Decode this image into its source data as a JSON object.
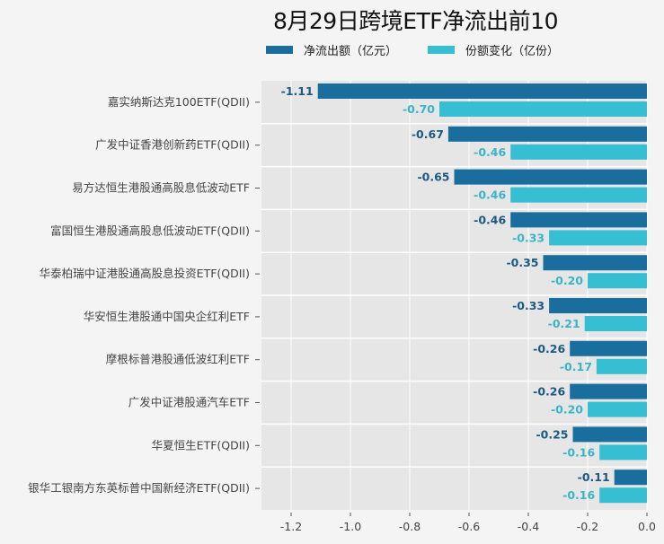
{
  "chart_data": {
    "type": "bar",
    "orientation": "horizontal",
    "title": "8月29日跨境ETF净流出前10",
    "xlabel": "",
    "ylabel": "",
    "xlim": [
      -1.3,
      0.0
    ],
    "xticks": [
      "-1.2",
      "-1.0",
      "-0.8",
      "-0.6",
      "-0.4",
      "-0.2",
      "0.0"
    ],
    "xtick_values": [
      -1.2,
      -1.0,
      -0.8,
      -0.6,
      -0.4,
      -0.2,
      0.0
    ],
    "grid": true,
    "legend_position": "top-left",
    "categories": [
      "嘉实纳斯达克100ETF(QDII)",
      "广发中证香港创新药ETF(QDII)",
      "易方达恒生港股通高股息低波动ETF",
      "富国恒生港股通高股息低波动ETF(QDII)",
      "华泰柏瑞中证港股通高股息投资ETF(QDII)",
      "华安恒生港股通中国央企红利ETF",
      "摩根标普港股通低波红利ETF",
      "广发中证港股通汽车ETF",
      "华夏恒生ETF(QDII)",
      "银华工银南方东英标普中国新经济ETF(QDII)"
    ],
    "series": [
      {
        "name": "净流出额（亿元）",
        "color": "#1a6e9e",
        "labels": [
          "-1.11",
          "-0.67",
          "-0.65",
          "-0.46",
          "-0.35",
          "-0.33",
          "-0.26",
          "-0.26",
          "-0.25",
          "-0.11"
        ],
        "values": [
          -1.11,
          -0.67,
          -0.65,
          -0.46,
          -0.35,
          -0.33,
          -0.26,
          -0.26,
          -0.25,
          -0.11
        ]
      },
      {
        "name": "份额变化（亿份）",
        "color": "#36bfd2",
        "labels": [
          "-0.70",
          "-0.46",
          "-0.46",
          "-0.33",
          "-0.20",
          "-0.21",
          "-0.17",
          "-0.20",
          "-0.16",
          "-0.16"
        ],
        "values": [
          -0.7,
          -0.46,
          -0.46,
          -0.33,
          -0.2,
          -0.21,
          -0.17,
          -0.2,
          -0.16,
          -0.16
        ]
      }
    ],
    "colors": {
      "plot_bg": "#e6e6e6",
      "grid": "#ffffff",
      "series1_label": "#1c5a82",
      "series2_label": "#3ab4c8"
    }
  }
}
